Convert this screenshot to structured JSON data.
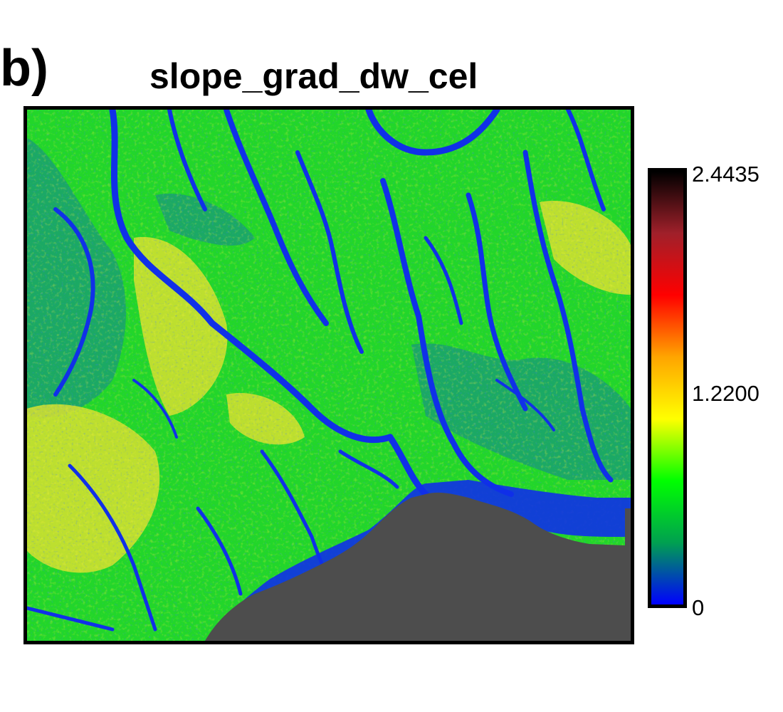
{
  "panel_label": "b)",
  "title": "slope_grad_dw_cel",
  "colorbar": {
    "max_label": "2.4435",
    "mid_label": "1.2200",
    "min_label": "0",
    "min_value": 0,
    "mid_value": 1.22,
    "max_value": 2.4435,
    "colors": [
      "#0000ff",
      "#00a050",
      "#00ff00",
      "#ffff00",
      "#ffa500",
      "#ff0000",
      "#a0202a",
      "#000000"
    ]
  },
  "map": {
    "nodata_color": "#4d4d4d",
    "channel_color": "#1030e8",
    "hillslope_color": "#22d62a",
    "high_slope_color": "#e8e020"
  }
}
